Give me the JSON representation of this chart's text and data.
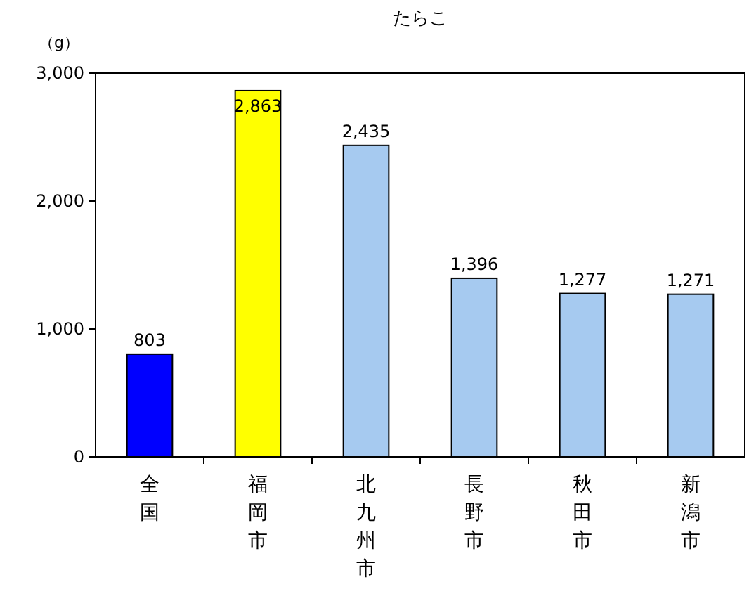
{
  "chart_data": {
    "type": "bar",
    "title": "たらこ",
    "ylabel": "（g）",
    "categories": [
      "全国",
      "福岡市",
      "北九州市",
      "長野市",
      "秋田市",
      "新潟市"
    ],
    "values": [
      803,
      2863,
      2435,
      1396,
      1277,
      1271
    ],
    "colors": [
      "#0000ff",
      "#ffff00",
      "#a6caf0",
      "#a6caf0",
      "#a6caf0",
      "#a6caf0"
    ],
    "value_labels": [
      "803",
      "2,863",
      "2,435",
      "1,396",
      "1,277",
      "1,271"
    ],
    "ylim": [
      0,
      3000
    ],
    "yticks": [
      {
        "value": 0,
        "label": "0"
      },
      {
        "value": 1000,
        "label": "1,000"
      },
      {
        "value": 2000,
        "label": "2,000"
      },
      {
        "value": 3000,
        "label": "3,000"
      }
    ],
    "grid": false
  }
}
